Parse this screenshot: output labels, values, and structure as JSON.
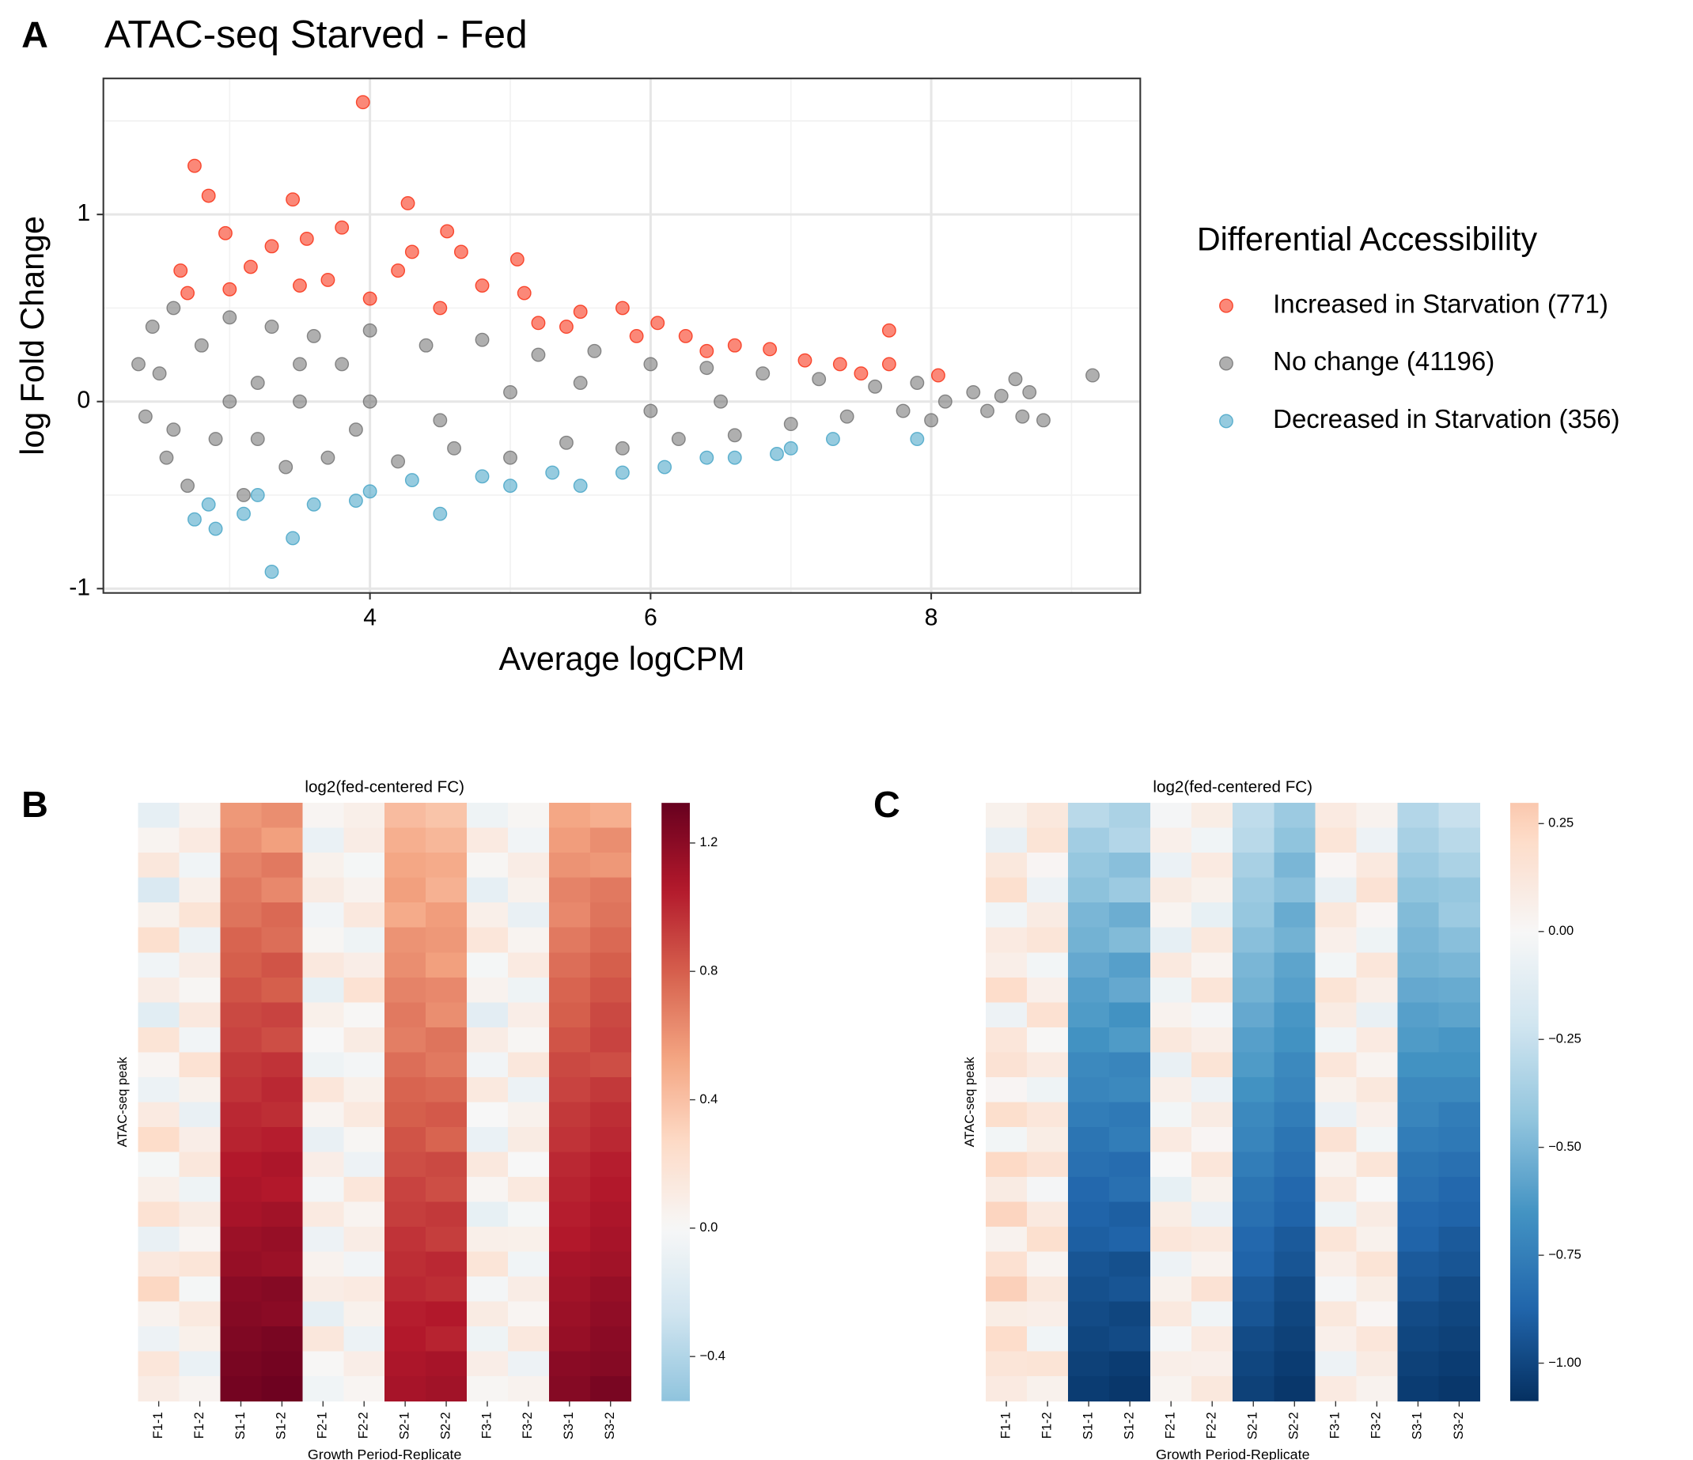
{
  "chart_data": [
    {
      "type": "scatter",
      "panel_label": "A",
      "title": "ATAC-seq Starved  - Fed",
      "xlabel": "Average logCPM",
      "ylabel": "log Fold Change",
      "legend_title": "Differential Accessibility",
      "legend": "right",
      "grid": true,
      "xlim": [
        2.1,
        9.49
      ],
      "ylim": [
        -1.023,
        1.727
      ],
      "xticks": [
        4,
        6,
        8
      ],
      "yticks": [
        -1,
        0,
        1
      ],
      "series": [
        {
          "name": "Increased in Starvation (771)",
          "color": "#f8270a",
          "x": [
            2.75,
            2.85,
            2.97,
            3.45,
            3.95,
            4.27,
            4.55,
            3.8,
            3.55,
            3.3,
            4.3,
            4.65,
            5.05,
            3.15,
            2.65,
            4.8,
            5.1,
            5.5,
            5.8,
            6.05,
            6.25,
            6.6,
            6.85,
            7.1,
            7.35,
            7.7,
            7.7,
            8.05,
            3.0,
            3.5,
            4.0,
            4.5,
            5.2,
            5.9,
            6.4,
            7.5,
            2.7,
            3.7,
            4.2,
            5.4
          ],
          "y": [
            1.26,
            1.1,
            0.9,
            1.08,
            1.6,
            1.06,
            0.91,
            0.93,
            0.87,
            0.83,
            0.8,
            0.8,
            0.76,
            0.72,
            0.7,
            0.62,
            0.58,
            0.48,
            0.5,
            0.42,
            0.35,
            0.3,
            0.28,
            0.22,
            0.2,
            0.38,
            0.2,
            0.14,
            0.6,
            0.62,
            0.55,
            0.5,
            0.42,
            0.35,
            0.27,
            0.15,
            0.58,
            0.65,
            0.7,
            0.4
          ]
        },
        {
          "name": "No change (41196)",
          "color": "#6e6e6e",
          "x": [
            2.35,
            2.4,
            2.45,
            2.5,
            2.55,
            2.6,
            2.7,
            2.8,
            2.9,
            3.0,
            3.1,
            3.2,
            3.3,
            3.4,
            3.5,
            3.6,
            3.7,
            3.8,
            3.9,
            4.0,
            4.2,
            4.4,
            4.6,
            4.8,
            5.0,
            5.2,
            5.4,
            5.6,
            5.8,
            6.0,
            6.2,
            6.4,
            6.6,
            6.8,
            7.0,
            7.2,
            7.4,
            7.6,
            7.8,
            7.9,
            8.0,
            8.1,
            8.3,
            8.4,
            8.5,
            8.6,
            8.7,
            8.8,
            9.15,
            8.65,
            3.0,
            4.0,
            5.0,
            6.0,
            3.5,
            4.5,
            5.5,
            6.5,
            2.6,
            3.2
          ],
          "y": [
            0.2,
            -0.08,
            0.4,
            0.15,
            -0.3,
            0.5,
            -0.45,
            0.3,
            -0.2,
            0.45,
            -0.5,
            0.1,
            0.4,
            -0.35,
            0.0,
            0.35,
            -0.3,
            0.2,
            -0.15,
            0.38,
            -0.32,
            0.3,
            -0.25,
            0.33,
            -0.3,
            0.25,
            -0.22,
            0.27,
            -0.25,
            0.2,
            -0.2,
            0.18,
            -0.18,
            0.15,
            -0.12,
            0.12,
            -0.08,
            0.08,
            -0.05,
            0.1,
            -0.1,
            0.0,
            0.05,
            -0.05,
            0.03,
            0.12,
            0.05,
            -0.1,
            0.14,
            -0.08,
            0.0,
            0.0,
            0.05,
            -0.05,
            0.2,
            -0.1,
            0.1,
            0.0,
            -0.15,
            -0.2
          ]
        },
        {
          "name": "Decreased in Starvation (356)",
          "color": "#3fa1c4",
          "x": [
            3.3,
            3.45,
            2.9,
            2.75,
            3.1,
            4.5,
            3.6,
            5.5,
            5.0,
            6.1,
            6.9,
            7.3,
            7.9,
            4.0,
            4.3,
            3.9,
            5.8,
            6.4,
            7.0,
            2.85,
            3.2,
            4.8,
            5.3,
            6.6
          ],
          "y": [
            -0.91,
            -0.73,
            -0.68,
            -0.63,
            -0.6,
            -0.6,
            -0.55,
            -0.45,
            -0.45,
            -0.35,
            -0.28,
            -0.2,
            -0.2,
            -0.48,
            -0.42,
            -0.53,
            -0.38,
            -0.3,
            -0.25,
            -0.55,
            -0.5,
            -0.4,
            -0.38,
            -0.3
          ]
        }
      ]
    },
    {
      "type": "heatmap",
      "panel_label": "B",
      "title": "log2(fed-centered FC)",
      "xlabel": "Growth Period-Replicate",
      "ylabel": "ATAC-seq peak",
      "categories": [
        "F1-1",
        "F1-2",
        "S1-1",
        "S1-2",
        "F2-1",
        "F2-2",
        "S2-1",
        "S2-2",
        "F3-1",
        "F3-2",
        "S3-1",
        "S3-2"
      ],
      "colormap": [
        "#053061",
        "#2166ac",
        "#4393c3",
        "#92c5de",
        "#d1e5f0",
        "#f7f7f7",
        "#fddbc7",
        "#f4a582",
        "#d6604d",
        "#b2182b",
        "#67001f"
      ],
      "clim": [
        -0.539,
        1.325
      ],
      "cticks": [
        1.2,
        0.8,
        0.4,
        {
          "value": 0,
          "label": "0.0"
        },
        {
          "value": -0.4,
          "label": "−0.4"
        }
      ],
      "z": [
        [
          -0.12,
          0.05,
          0.58,
          0.62,
          0.03,
          0.08,
          0.42,
          0.38,
          -0.06,
          0.02,
          0.52,
          0.48
        ],
        [
          0.04,
          0.12,
          0.61,
          0.55,
          -0.09,
          0.1,
          0.48,
          0.44,
          0.12,
          -0.04,
          0.56,
          0.62
        ],
        [
          0.15,
          -0.05,
          0.66,
          0.7,
          0.06,
          -0.02,
          0.52,
          0.5,
          0.02,
          0.1,
          0.6,
          0.58
        ],
        [
          -0.2,
          0.08,
          0.7,
          0.64,
          0.11,
          0.05,
          0.55,
          0.47,
          -0.12,
          0.06,
          0.66,
          0.7
        ],
        [
          0.06,
          0.18,
          0.72,
          0.76,
          -0.04,
          0.14,
          0.5,
          0.56,
          0.08,
          -0.1,
          0.64,
          0.72
        ],
        [
          0.22,
          -0.08,
          0.78,
          0.74,
          0.02,
          -0.06,
          0.6,
          0.58,
          0.16,
          0.04,
          0.7,
          0.76
        ],
        [
          -0.05,
          0.1,
          0.8,
          0.84,
          0.14,
          0.09,
          0.62,
          0.55,
          -0.02,
          0.12,
          0.74,
          0.8
        ],
        [
          0.1,
          0.02,
          0.84,
          0.8,
          -0.11,
          0.2,
          0.66,
          0.64,
          0.05,
          -0.06,
          0.78,
          0.84
        ],
        [
          -0.15,
          0.14,
          0.88,
          0.9,
          0.07,
          0.01,
          0.7,
          0.62,
          -0.14,
          0.09,
          0.8,
          0.88
        ],
        [
          0.18,
          -0.04,
          0.9,
          0.86,
          0.0,
          0.11,
          0.68,
          0.72,
          0.1,
          0.02,
          0.84,
          0.9
        ],
        [
          0.03,
          0.2,
          0.94,
          0.96,
          -0.06,
          -0.03,
          0.74,
          0.7,
          -0.04,
          0.15,
          0.88,
          0.86
        ],
        [
          -0.08,
          0.06,
          0.96,
          1.0,
          0.16,
          0.07,
          0.78,
          0.76,
          0.13,
          -0.08,
          0.9,
          0.94
        ],
        [
          0.12,
          -0.1,
          1.0,
          0.98,
          0.04,
          0.13,
          0.8,
          0.82,
          0.0,
          0.06,
          0.94,
          0.98
        ],
        [
          0.25,
          0.09,
          1.02,
          1.04,
          -0.1,
          0.02,
          0.84,
          0.78,
          -0.09,
          0.11,
          0.96,
          1.0
        ],
        [
          -0.02,
          0.15,
          1.06,
          1.08,
          0.09,
          -0.07,
          0.86,
          0.88,
          0.14,
          0.0,
          1.0,
          1.04
        ],
        [
          0.08,
          -0.06,
          1.08,
          1.06,
          -0.03,
          0.16,
          0.9,
          0.86,
          0.03,
          0.13,
          1.02,
          1.06
        ],
        [
          0.2,
          0.11,
          1.1,
          1.12,
          0.12,
          0.04,
          0.92,
          0.94,
          -0.11,
          -0.02,
          1.04,
          1.08
        ],
        [
          -0.1,
          0.03,
          1.14,
          1.16,
          -0.07,
          0.1,
          0.96,
          0.92,
          0.08,
          0.07,
          1.06,
          1.1
        ],
        [
          0.14,
          0.17,
          1.16,
          1.14,
          0.05,
          -0.04,
          0.98,
          1.0,
          0.17,
          -0.05,
          1.1,
          1.12
        ],
        [
          0.28,
          -0.02,
          1.2,
          1.22,
          0.1,
          0.12,
          1.0,
          0.98,
          -0.03,
          0.1,
          1.12,
          1.16
        ],
        [
          0.05,
          0.13,
          1.22,
          1.2,
          -0.12,
          0.06,
          1.04,
          1.06,
          0.11,
          0.03,
          1.14,
          1.18
        ],
        [
          -0.07,
          0.07,
          1.24,
          1.26,
          0.15,
          -0.08,
          1.06,
          1.02,
          -0.06,
          0.14,
          1.16,
          1.2
        ],
        [
          0.16,
          -0.09,
          1.26,
          1.28,
          0.01,
          0.09,
          1.08,
          1.1,
          0.09,
          -0.07,
          1.2,
          1.22
        ],
        [
          0.1,
          0.04,
          1.28,
          1.3,
          -0.05,
          0.03,
          1.1,
          1.12,
          0.02,
          0.05,
          1.22,
          1.26
        ]
      ]
    },
    {
      "type": "heatmap",
      "panel_label": "C",
      "title": "log2(fed-centered FC)",
      "xlabel": "Growth Period-Replicate",
      "ylabel": "ATAC-seq peak",
      "categories": [
        "F1-1",
        "F1-2",
        "S1-1",
        "S1-2",
        "F2-1",
        "F2-2",
        "S2-1",
        "S2-2",
        "F3-1",
        "F3-2",
        "S3-1",
        "S3-2"
      ],
      "colormap": [
        "#053061",
        "#2166ac",
        "#4393c3",
        "#92c5de",
        "#d1e5f0",
        "#f7f7f7",
        "#fddbc7",
        "#f4a582",
        "#d6604d",
        "#b2182b",
        "#67001f"
      ],
      "clim": [
        -1.088,
        0.298
      ],
      "cticks": [
        0.25,
        {
          "value": 0,
          "label": "0.00"
        },
        {
          "value": -0.25,
          "label": "−0.25"
        },
        {
          "value": -0.5,
          "label": "−0.50"
        },
        {
          "value": -0.75,
          "label": "−0.75"
        },
        {
          "value": -1,
          "label": "−1.00"
        }
      ],
      "z": [
        [
          0.05,
          0.12,
          -0.3,
          -0.35,
          -0.02,
          0.08,
          -0.28,
          -0.4,
          0.1,
          0.04,
          -0.32,
          -0.25
        ],
        [
          -0.08,
          0.15,
          -0.38,
          -0.32,
          0.06,
          -0.04,
          -0.3,
          -0.44,
          0.14,
          -0.06,
          -0.36,
          -0.3
        ],
        [
          0.12,
          0.02,
          -0.42,
          -0.46,
          -0.07,
          0.1,
          -0.36,
          -0.5,
          0.02,
          0.11,
          -0.4,
          -0.35
        ],
        [
          0.18,
          -0.06,
          -0.45,
          -0.4,
          0.09,
          0.05,
          -0.4,
          -0.46,
          -0.08,
          0.16,
          -0.44,
          -0.42
        ],
        [
          -0.04,
          0.09,
          -0.5,
          -0.54,
          0.03,
          -0.09,
          -0.42,
          -0.55,
          0.12,
          0.02,
          -0.48,
          -0.4
        ],
        [
          0.1,
          0.14,
          -0.52,
          -0.48,
          -0.1,
          0.12,
          -0.46,
          -0.52,
          0.06,
          -0.05,
          -0.5,
          -0.46
        ],
        [
          0.07,
          -0.03,
          -0.56,
          -0.6,
          0.11,
          0.03,
          -0.5,
          -0.58,
          -0.03,
          0.13,
          -0.52,
          -0.5
        ],
        [
          0.2,
          0.06,
          -0.6,
          -0.56,
          -0.05,
          0.14,
          -0.52,
          -0.6,
          0.15,
          0.07,
          -0.56,
          -0.55
        ],
        [
          -0.06,
          0.17,
          -0.62,
          -0.66,
          0.04,
          -0.02,
          -0.56,
          -0.64,
          0.09,
          -0.08,
          -0.6,
          -0.58
        ],
        [
          0.13,
          0.01,
          -0.66,
          -0.62,
          0.12,
          0.07,
          -0.6,
          -0.66,
          -0.04,
          0.1,
          -0.62,
          -0.64
        ],
        [
          0.16,
          0.1,
          -0.7,
          -0.72,
          -0.08,
          0.15,
          -0.62,
          -0.7,
          0.13,
          0.03,
          -0.66,
          -0.66
        ],
        [
          0.02,
          -0.05,
          -0.72,
          -0.7,
          0.07,
          -0.06,
          -0.66,
          -0.72,
          0.05,
          0.12,
          -0.7,
          -0.7
        ],
        [
          0.19,
          0.13,
          -0.76,
          -0.78,
          -0.03,
          0.09,
          -0.7,
          -0.76,
          -0.07,
          0.06,
          -0.72,
          -0.76
        ],
        [
          -0.03,
          0.08,
          -0.8,
          -0.76,
          0.1,
          0.02,
          -0.72,
          -0.8,
          0.16,
          -0.03,
          -0.76,
          -0.78
        ],
        [
          0.22,
          0.16,
          -0.82,
          -0.84,
          0.0,
          0.13,
          -0.76,
          -0.82,
          0.04,
          0.14,
          -0.8,
          -0.82
        ],
        [
          0.09,
          -0.02,
          -0.86,
          -0.82,
          -0.09,
          0.05,
          -0.8,
          -0.86,
          0.11,
          0.0,
          -0.82,
          -0.86
        ],
        [
          0.24,
          0.11,
          -0.88,
          -0.9,
          0.08,
          -0.07,
          -0.82,
          -0.88,
          -0.05,
          0.09,
          -0.86,
          -0.88
        ],
        [
          0.04,
          0.18,
          -0.9,
          -0.88,
          0.13,
          0.11,
          -0.86,
          -0.92,
          0.14,
          0.05,
          -0.88,
          -0.92
        ],
        [
          0.17,
          0.03,
          -0.94,
          -0.96,
          -0.06,
          0.04,
          -0.88,
          -0.94,
          0.07,
          0.15,
          -0.92,
          -0.94
        ],
        [
          0.26,
          0.12,
          -0.96,
          -0.94,
          0.05,
          0.16,
          -0.92,
          -0.98,
          -0.02,
          0.08,
          -0.94,
          -0.98
        ],
        [
          0.08,
          0.07,
          -0.98,
          -1.0,
          0.11,
          -0.04,
          -0.94,
          -1.0,
          0.12,
          0.02,
          -0.98,
          -1.0
        ],
        [
          0.2,
          -0.04,
          -1.0,
          -0.98,
          -0.02,
          0.1,
          -0.98,
          -1.02,
          0.06,
          0.13,
          -1.0,
          -1.02
        ],
        [
          0.14,
          0.15,
          -1.02,
          -1.04,
          0.07,
          0.06,
          -1.0,
          -1.04,
          -0.06,
          0.09,
          -1.02,
          -1.04
        ],
        [
          0.1,
          0.05,
          -1.04,
          -1.06,
          0.03,
          0.12,
          -1.02,
          -1.06,
          0.1,
          0.04,
          -1.04,
          -1.06
        ]
      ]
    }
  ]
}
